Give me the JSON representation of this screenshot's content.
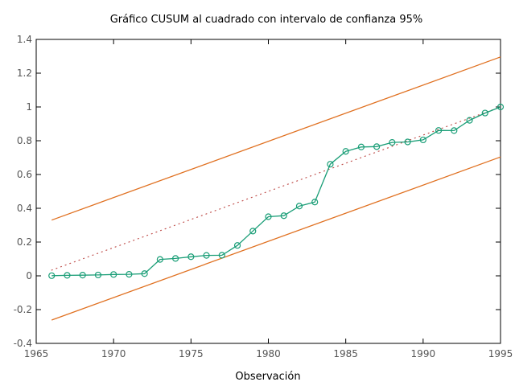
{
  "chart_data": {
    "type": "line",
    "title": "Gráfico CUSUM al cuadrado con intervalo de confianza 95%",
    "xlabel": "Observación",
    "ylabel": "",
    "xlim": [
      1965,
      1995
    ],
    "ylim": [
      -0.4,
      1.4
    ],
    "xticks": [
      1965,
      1970,
      1975,
      1980,
      1985,
      1990,
      1995
    ],
    "xtick_labels": [
      "1965",
      "1970",
      "1975",
      "1980",
      "1985",
      "1990",
      "1995"
    ],
    "yticks": [
      -0.4,
      -0.2,
      0,
      0.2,
      0.4,
      0.6,
      0.8,
      1,
      1.2,
      1.4
    ],
    "ytick_labels": [
      "-0.4",
      "-0.2",
      "0",
      "0.2",
      "0.4",
      "0.6",
      "0.8",
      "1",
      "1.2",
      "1.4"
    ],
    "grid": false,
    "legend": "none",
    "series": [
      {
        "role": "cusum-squared",
        "color": "#1a9e77",
        "style": "solid-with-circle-markers",
        "x": [
          1966,
          1967,
          1968,
          1969,
          1970,
          1971,
          1972,
          1973,
          1974,
          1975,
          1976,
          1977,
          1978,
          1979,
          1980,
          1981,
          1982,
          1983,
          1984,
          1985,
          1986,
          1987,
          1988,
          1989,
          1990,
          1991,
          1992,
          1993,
          1994,
          1995
        ],
        "y": [
          0.001,
          0.003,
          0.004,
          0.005,
          0.008,
          0.009,
          0.013,
          0.097,
          0.103,
          0.113,
          0.121,
          0.122,
          0.18,
          0.265,
          0.35,
          0.356,
          0.413,
          0.437,
          0.661,
          0.737,
          0.763,
          0.765,
          0.79,
          0.793,
          0.805,
          0.861,
          0.86,
          0.921,
          0.964,
          1.0
        ]
      },
      {
        "role": "expected-line",
        "color": "#c0504d",
        "style": "dotted",
        "x": [
          1966,
          1995
        ],
        "y": [
          0.034,
          1.0
        ]
      },
      {
        "role": "upper-bound",
        "color": "#e07020",
        "style": "solid",
        "x": [
          1966,
          1995
        ],
        "y": [
          0.33,
          1.296
        ]
      },
      {
        "role": "lower-bound",
        "color": "#e07020",
        "style": "solid",
        "x": [
          1966,
          1995
        ],
        "y": [
          -0.262,
          0.704
        ]
      }
    ]
  }
}
